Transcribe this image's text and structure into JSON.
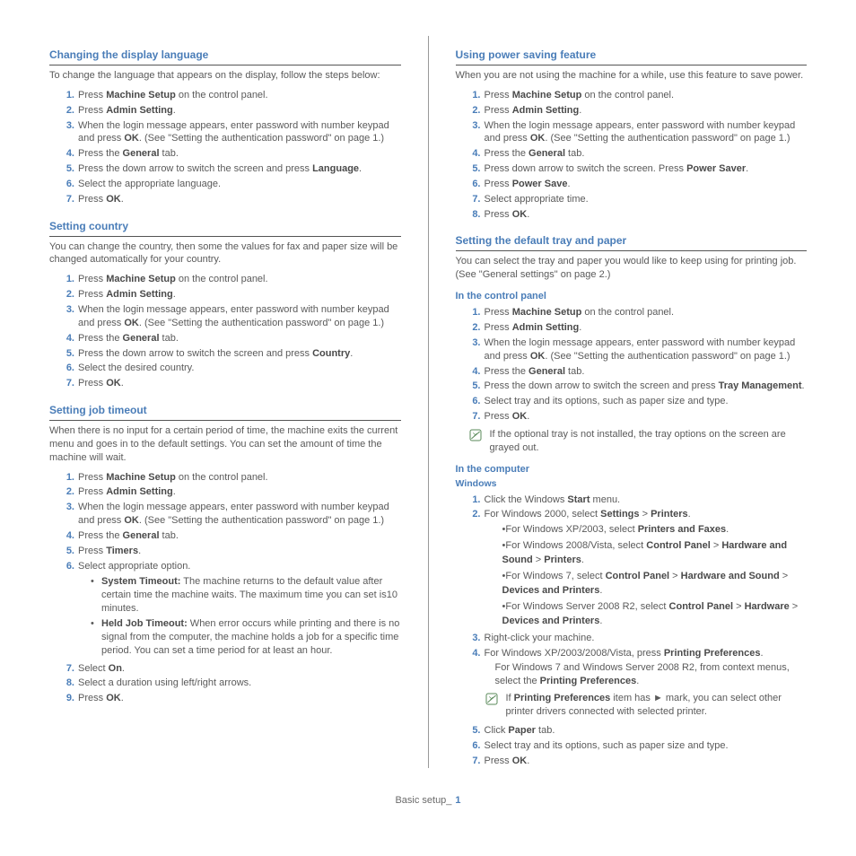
{
  "footer": {
    "label": "Basic setup_",
    "page": "1"
  },
  "left": {
    "s1": {
      "title": "Changing the display language",
      "intro": "To change the language that appears on the display, follow the steps below:",
      "steps": [
        {
          "pre": "Press ",
          "b1": "Machine Setup",
          "post": " on the control panel."
        },
        {
          "pre": "Press ",
          "b1": "Admin Setting",
          "post": "."
        },
        {
          "pre": "When the login message appears, enter password with number keypad and press ",
          "b1": "OK",
          "post": ". (See \"Setting the authentication password\" on page 1.)"
        },
        {
          "pre": "Press the ",
          "b1": "General",
          "post": " tab."
        },
        {
          "pre": "Press the down arrow to switch the screen and press ",
          "b1": "Language",
          "post": "."
        },
        {
          "pre": "Select the appropriate language."
        },
        {
          "pre": "Press ",
          "b1": "OK",
          "post": "."
        }
      ]
    },
    "s2": {
      "title": "Setting country",
      "intro": "You can change the country, then some the values for fax and paper size will be changed automatically for your country.",
      "steps": [
        {
          "pre": "Press ",
          "b1": "Machine Setup",
          "post": " on the control panel."
        },
        {
          "pre": "Press ",
          "b1": "Admin Setting",
          "post": "."
        },
        {
          "pre": "When the login message appears, enter password with number keypad and press ",
          "b1": "OK",
          "post": ". (See \"Setting the authentication password\" on page 1.)"
        },
        {
          "pre": "Press the ",
          "b1": "General",
          "post": " tab."
        },
        {
          "pre": "Press the down arrow to switch the screen and press ",
          "b1": "Country",
          "post": "."
        },
        {
          "pre": "Select the desired country."
        },
        {
          "pre": "Press ",
          "b1": "OK",
          "post": "."
        }
      ]
    },
    "s3": {
      "title": "Setting job timeout",
      "intro": "When there is no input for a certain period of time, the machine exits the current menu and goes in to the default settings. You can set the amount of time the machine will wait.",
      "steps": [
        {
          "pre": "Press ",
          "b1": "Machine Setup",
          "post": " on the control panel."
        },
        {
          "pre": "Press ",
          "b1": "Admin Setting",
          "post": "."
        },
        {
          "pre": "When the login message appears, enter password with number keypad and press ",
          "b1": "OK",
          "post": ". (See \"Setting the authentication password\" on page 1.)"
        },
        {
          "pre": "Press the ",
          "b1": "General",
          "post": " tab."
        },
        {
          "pre": "Press ",
          "b1": "Timers",
          "post": "."
        },
        {
          "pre": "Select appropriate option.",
          "sub": [
            {
              "b1": "System Timeout:",
              "text": " The machine returns to the default value after certain time the machine waits. The maximum time you can set is10 minutes."
            },
            {
              "b1": "Held Job Timeout:",
              "text": " When error occurs while printing and there is no signal from the computer, the machine holds a job for a specific time period. You can set a time period for at least an hour."
            }
          ]
        },
        {
          "pre": "Select ",
          "b1": "On",
          "post": "."
        },
        {
          "pre": "Select a duration using left/right arrows."
        },
        {
          "pre": "Press ",
          "b1": "OK",
          "post": "."
        }
      ]
    }
  },
  "right": {
    "s4": {
      "title": "Using power saving feature",
      "intro": "When you are not using the machine for a while, use this feature to save power.",
      "steps": [
        {
          "pre": "Press ",
          "b1": "Machine Setup",
          "post": " on the control panel."
        },
        {
          "pre": "Press ",
          "b1": "Admin Setting",
          "post": "."
        },
        {
          "pre": "When the login message appears, enter password with number keypad and press ",
          "b1": "OK",
          "post": ". (See \"Setting the authentication password\" on page 1.)"
        },
        {
          "pre": "Press the ",
          "b1": "General",
          "post": " tab."
        },
        {
          "pre": "Press down arrow to switch the screen. Press ",
          "b1": "Power Saver",
          "post": "."
        },
        {
          "pre": "Press ",
          "b1": "Power Save",
          "post": "."
        },
        {
          "pre": "Select appropriate time."
        },
        {
          "pre": "Press ",
          "b1": "OK",
          "post": "."
        }
      ]
    },
    "s5": {
      "title": "Setting the default tray and paper",
      "intro": "You can select the tray and paper you would like to keep using for printing job. (See \"General settings\" on page 2.)",
      "sub1": {
        "heading": "In the control panel",
        "steps": [
          {
            "pre": "Press ",
            "b1": "Machine Setup",
            "post": " on the control panel."
          },
          {
            "pre": "Press ",
            "b1": "Admin Setting",
            "post": "."
          },
          {
            "pre": "When the login message appears, enter password with number keypad and press ",
            "b1": "OK",
            "post": ". (See \"Setting the authentication password\" on page 1.)"
          },
          {
            "pre": "Press the ",
            "b1": "General",
            "post": " tab."
          },
          {
            "pre": "Press the down arrow to switch the screen and press ",
            "b1": "Tray Management",
            "post": "."
          },
          {
            "pre": "Select tray and its options, such as paper size and type."
          },
          {
            "pre": "Press ",
            "b1": "OK",
            "post": "."
          }
        ],
        "note": "If the optional tray is not installed, the tray options on the screen are grayed out."
      },
      "sub2": {
        "heading": "In the computer",
        "subheading": "Windows",
        "steps": [
          {
            "html": "Click the Windows <span class='bold'>Start</span> menu."
          },
          {
            "html": "For Windows 2000, select <span class='bold'>Settings</span> > <span class='bold'>Printers</span>.",
            "winrows": [
              "•For Windows XP/2003, select <span class='bold'>Printers and Faxes</span>.",
              "•For Windows 2008/Vista, select <span class='bold'>Control Panel</span> > <span class='bold'>Hardware and Sound</span> > <span class='bold'>Printers</span>.",
              "•For Windows 7, select <span class='bold'>Control Panel</span> > <span class='bold'>Hardware and Sound</span> > <span class='bold'>Devices and Printers</span>.",
              "•For Windows Server 2008 R2, select <span class='bold'>Control Panel</span> > <span class='bold'>Hardware</span> > <span class='bold'>Devices and Printers</span>."
            ]
          },
          {
            "html": "Right-click your machine."
          },
          {
            "html": "For Windows XP/2003/2008/Vista, press <span class='bold'>Printing Preferences</span>.",
            "extra": "For Windows 7 and Windows Server 2008 R2, from context menus, select the <span class='bold'>Printing Preferences</span>.",
            "note": "If <span class='bold'>Printing Preferences</span> item has ► mark, you can select other printer drivers connected with selected printer."
          },
          {
            "html": "Click <span class='bold'>Paper</span> tab."
          },
          {
            "html": "Select tray and its options, such as paper size and type."
          },
          {
            "html": "Press <span class='bold'>OK</span>."
          }
        ]
      }
    }
  }
}
